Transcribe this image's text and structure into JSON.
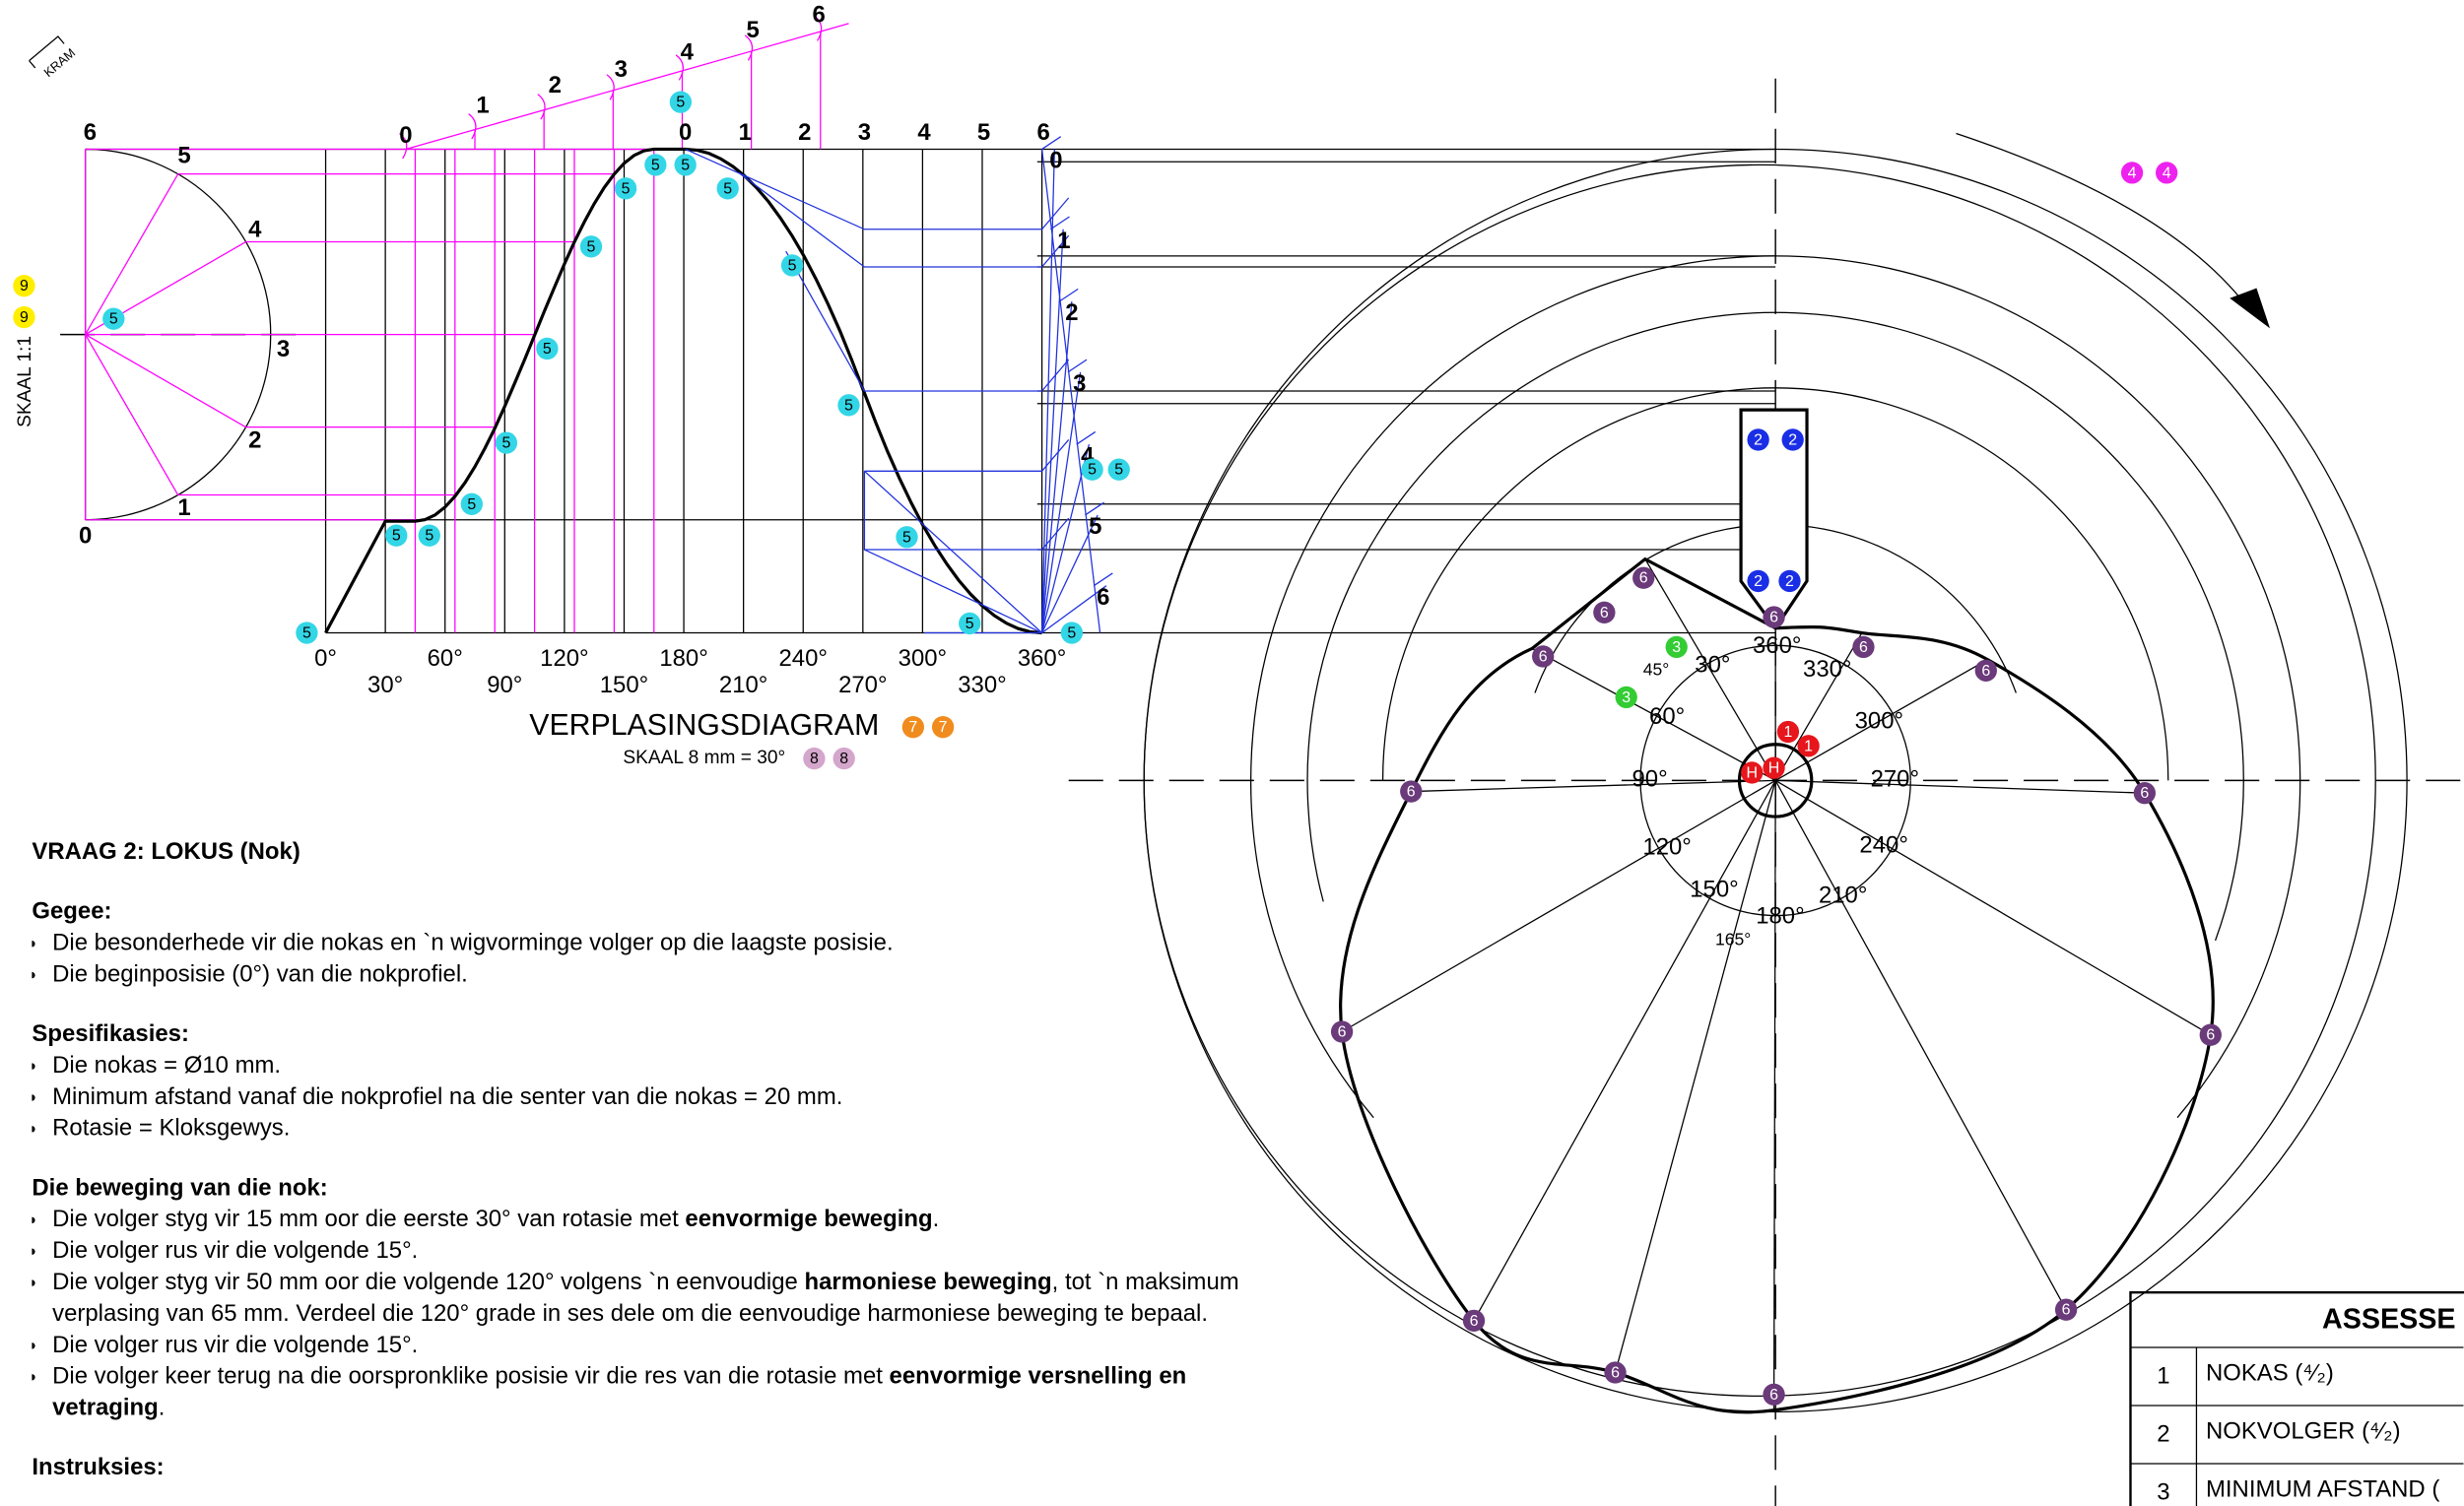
{
  "header": {
    "kram": "KRAM"
  },
  "diagram": {
    "scale_label": "SKAAL 1:1",
    "semicircle_labels": [
      "0",
      "1",
      "2",
      "3",
      "4",
      "5",
      "6"
    ],
    "slant_scale": [
      "0",
      "1",
      "2",
      "3",
      "4",
      "5",
      "6"
    ],
    "top_scale": [
      "0",
      "1",
      "2",
      "3",
      "4",
      "5",
      "6"
    ],
    "right_scale": [
      "0",
      "1",
      "2",
      "3",
      "4",
      "5",
      "6"
    ],
    "angles": [
      "0°",
      "30°",
      "60°",
      "90°",
      "120°",
      "150°",
      "180°",
      "210°",
      "240°",
      "270°",
      "300°",
      "330°",
      "360°"
    ],
    "title": "VERPLASINGSDIAGRAM",
    "subtitle": "SKAAL 8 mm = 30°"
  },
  "cam": {
    "angles": [
      "360°",
      "30°",
      "330°",
      "45°",
      "60°",
      "300°",
      "90°",
      "270°",
      "120°",
      "240°",
      "150°",
      "210°",
      "180°",
      "165°"
    ]
  },
  "markers": [
    "5",
    "5",
    "5",
    "5",
    "5",
    "5",
    "5",
    "5",
    "5",
    "5",
    "5",
    "5",
    "5",
    "5",
    "5",
    "5",
    "5",
    "5",
    "5",
    "5",
    "9",
    "9",
    "4",
    "4",
    "7",
    "7",
    "8",
    "8",
    "2",
    "2",
    "2",
    "2",
    "6",
    "6",
    "6",
    "6",
    "6",
    "6",
    "6",
    "6",
    "6",
    "6",
    "6",
    "6",
    "6",
    "6",
    "3",
    "3",
    "1",
    "1",
    "H",
    "H"
  ],
  "question": {
    "title": "VRAAG 2: LOKUS (Nok)",
    "sections": [
      {
        "heading": "Gegee:",
        "items": [
          [
            "Die besonderhede vir die nokas en `n wigvorminge volger op die laagste posisie."
          ],
          [
            "Die beginposisie (0°) van die nokprofiel."
          ]
        ]
      },
      {
        "heading": "Spesifikasies:",
        "items": [
          [
            "Die nokas = Ø10 mm."
          ],
          [
            "Minimum afstand vanaf die nokprofiel na die senter van die nokas = 20 mm."
          ],
          [
            "Rotasie = Kloksgewys."
          ]
        ]
      },
      {
        "heading": "Die beweging van die nok:",
        "items": [
          [
            "Die volger styg vir 15 mm oor die eerste 30° van rotasie met ",
            "eenvormige beweging",
            "."
          ],
          [
            "Die volger rus vir die volgende 15°."
          ],
          [
            "Die volger styg vir 50 mm oor die volgende 120° volgens `n eenvoudige ",
            "harmoniese beweging",
            ", tot `n maksimum verplasing van 65 mm.  Verdeel die 120° grade in ses dele om die eenvoudige harmoniese beweging te bepaal."
          ],
          [
            "Die volger rus vir die volgende 15°."
          ],
          [
            "Die volger keer terug na die oorspronklike posisie vir die res van die rotasie met ",
            "eenvormige versnelling en vetraging",
            "."
          ]
        ]
      },
      {
        "heading": "Instruksies:",
        "items": []
      }
    ]
  },
  "table": {
    "title": "ASSESSE",
    "rows": [
      [
        "1",
        "NOKAS (⁴⁄₂)"
      ],
      [
        "2",
        "NOKVOLGER (⁴⁄₂)"
      ],
      [
        "3",
        "MINIMUM AFSTAND ("
      ]
    ]
  }
}
